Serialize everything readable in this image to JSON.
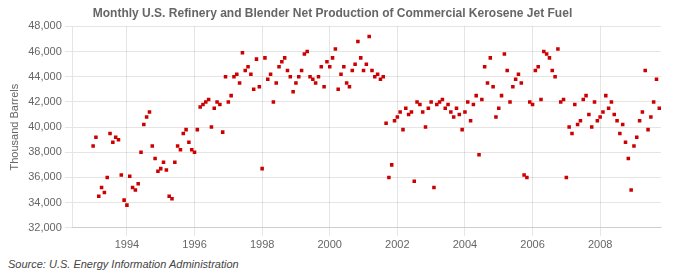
{
  "chart_data": {
    "type": "scatter",
    "title": "Monthly U.S. Refinery and Blender Net Production of Commercial Kerosene Jet Fuel",
    "ylabel": "Thousand Barrels",
    "annotations": [
      "Source: U.S. Energy Information Administration"
    ],
    "color": "#CC0000",
    "marker": "square",
    "grid": true,
    "xlim": [
      1992.4,
      2009.8
    ],
    "xticks": [
      1994,
      1996,
      1998,
      2000,
      2002,
      2004,
      2006,
      2008
    ],
    "ylim": [
      32000,
      48000
    ],
    "yticks": [
      {
        "value": 32000,
        "label": "32,000"
      },
      {
        "value": 34000,
        "label": "34,000"
      },
      {
        "value": 36000,
        "label": "36,000"
      },
      {
        "value": 38000,
        "label": "38,000"
      },
      {
        "value": 40000,
        "label": "40,000"
      },
      {
        "value": 42000,
        "label": "42,000"
      },
      {
        "value": 44000,
        "label": "44,000"
      },
      {
        "value": 46000,
        "label": "46,000"
      },
      {
        "value": 48000,
        "label": "48,000"
      }
    ],
    "x": [
      1993.0,
      1993.083,
      1993.167,
      1993.25,
      1993.333,
      1993.417,
      1993.5,
      1993.583,
      1993.667,
      1993.75,
      1993.833,
      1993.917,
      1994.0,
      1994.083,
      1994.167,
      1994.25,
      1994.333,
      1994.417,
      1994.5,
      1994.583,
      1994.667,
      1994.75,
      1994.833,
      1994.917,
      1995.0,
      1995.083,
      1995.167,
      1995.25,
      1995.333,
      1995.417,
      1995.5,
      1995.583,
      1995.667,
      1995.75,
      1995.833,
      1995.917,
      1996.0,
      1996.083,
      1996.167,
      1996.25,
      1996.333,
      1996.417,
      1996.5,
      1996.583,
      1996.667,
      1996.75,
      1996.833,
      1996.917,
      1997.0,
      1997.083,
      1997.167,
      1997.25,
      1997.333,
      1997.417,
      1997.5,
      1997.583,
      1997.667,
      1997.75,
      1997.833,
      1997.917,
      1998.0,
      1998.083,
      1998.167,
      1998.25,
      1998.333,
      1998.417,
      1998.5,
      1998.583,
      1998.667,
      1998.75,
      1998.833,
      1998.917,
      1999.0,
      1999.083,
      1999.167,
      1999.25,
      1999.333,
      1999.417,
      1999.5,
      1999.583,
      1999.667,
      1999.75,
      1999.833,
      1999.917,
      2000.0,
      2000.083,
      2000.167,
      2000.25,
      2000.333,
      2000.417,
      2000.5,
      2000.583,
      2000.667,
      2000.75,
      2000.833,
      2000.917,
      2001.0,
      2001.083,
      2001.167,
      2001.25,
      2001.333,
      2001.417,
      2001.5,
      2001.583,
      2001.667,
      2001.75,
      2001.833,
      2001.917,
      2002.0,
      2002.083,
      2002.167,
      2002.25,
      2002.333,
      2002.417,
      2002.5,
      2002.583,
      2002.667,
      2002.75,
      2002.833,
      2002.917,
      2003.0,
      2003.083,
      2003.167,
      2003.25,
      2003.333,
      2003.417,
      2003.5,
      2003.583,
      2003.667,
      2003.75,
      2003.833,
      2003.917,
      2004.0,
      2004.083,
      2004.167,
      2004.25,
      2004.333,
      2004.417,
      2004.5,
      2004.583,
      2004.667,
      2004.75,
      2004.833,
      2004.917,
      2005.0,
      2005.083,
      2005.167,
      2005.25,
      2005.333,
      2005.417,
      2005.5,
      2005.583,
      2005.667,
      2005.75,
      2005.833,
      2005.917,
      2006.0,
      2006.083,
      2006.167,
      2006.25,
      2006.333,
      2006.417,
      2006.5,
      2006.583,
      2006.667,
      2006.75,
      2006.833,
      2006.917,
      2007.0,
      2007.083,
      2007.167,
      2007.25,
      2007.333,
      2007.417,
      2007.5,
      2007.583,
      2007.667,
      2007.75,
      2007.833,
      2007.917,
      2008.0,
      2008.083,
      2008.167,
      2008.25,
      2008.333,
      2008.417,
      2008.5,
      2008.583,
      2008.667,
      2008.75,
      2008.833,
      2008.917,
      2009.0,
      2009.083,
      2009.167,
      2009.25,
      2009.333,
      2009.417,
      2009.5,
      2009.583,
      2009.667,
      2009.75
    ],
    "values": [
      38500,
      39200,
      34500,
      35200,
      34800,
      36000,
      39500,
      38800,
      39200,
      39000,
      36200,
      34200,
      33800,
      36100,
      35200,
      35000,
      35500,
      38000,
      40200,
      40800,
      41200,
      38500,
      37500,
      36500,
      36700,
      37200,
      36600,
      34500,
      34300,
      37200,
      38500,
      38200,
      39500,
      39800,
      38800,
      38200,
      38000,
      39800,
      41600,
      41800,
      42000,
      42200,
      40000,
      41500,
      42000,
      41800,
      39600,
      44000,
      42000,
      42500,
      44000,
      44200,
      43500,
      45900,
      44500,
      44800,
      44200,
      43000,
      45400,
      43200,
      36700,
      45500,
      43800,
      44200,
      42000,
      43500,
      44800,
      45200,
      45500,
      44500,
      44000,
      42800,
      43500,
      44000,
      44500,
      45800,
      46000,
      44000,
      43800,
      43500,
      44000,
      44800,
      43200,
      45200,
      44800,
      45500,
      46200,
      43000,
      44200,
      44800,
      43500,
      43200,
      44500,
      45000,
      46800,
      45500,
      44500,
      45000,
      47200,
      44500,
      44000,
      44200,
      43800,
      44000,
      40300,
      36000,
      37000,
      40500,
      40800,
      41200,
      39800,
      41500,
      41000,
      41200,
      35700,
      42000,
      41800,
      41200,
      40000,
      41500,
      42000,
      35200,
      41800,
      42000,
      42200,
      41500,
      41800,
      41200,
      40800,
      41500,
      41000,
      39800,
      41200,
      42000,
      40500,
      41800,
      42500,
      37800,
      42200,
      44800,
      43500,
      45500,
      43200,
      40800,
      41500,
      42500,
      45800,
      44500,
      42000,
      43200,
      43800,
      44200,
      43500,
      36200,
      36000,
      42000,
      41800,
      44500,
      44800,
      42200,
      46000,
      45800,
      45500,
      44500,
      44000,
      46200,
      42000,
      42200,
      36000,
      40000,
      39500,
      41800,
      40200,
      40500,
      42200,
      42500,
      41000,
      40000,
      42000,
      40500,
      40800,
      41200,
      42500,
      41500,
      42000,
      41000,
      40500,
      39500,
      40200,
      38800,
      37500,
      35000,
      38500,
      39200,
      40500,
      41200,
      44500,
      39800,
      40800,
      42000,
      43800,
      41500
    ]
  }
}
